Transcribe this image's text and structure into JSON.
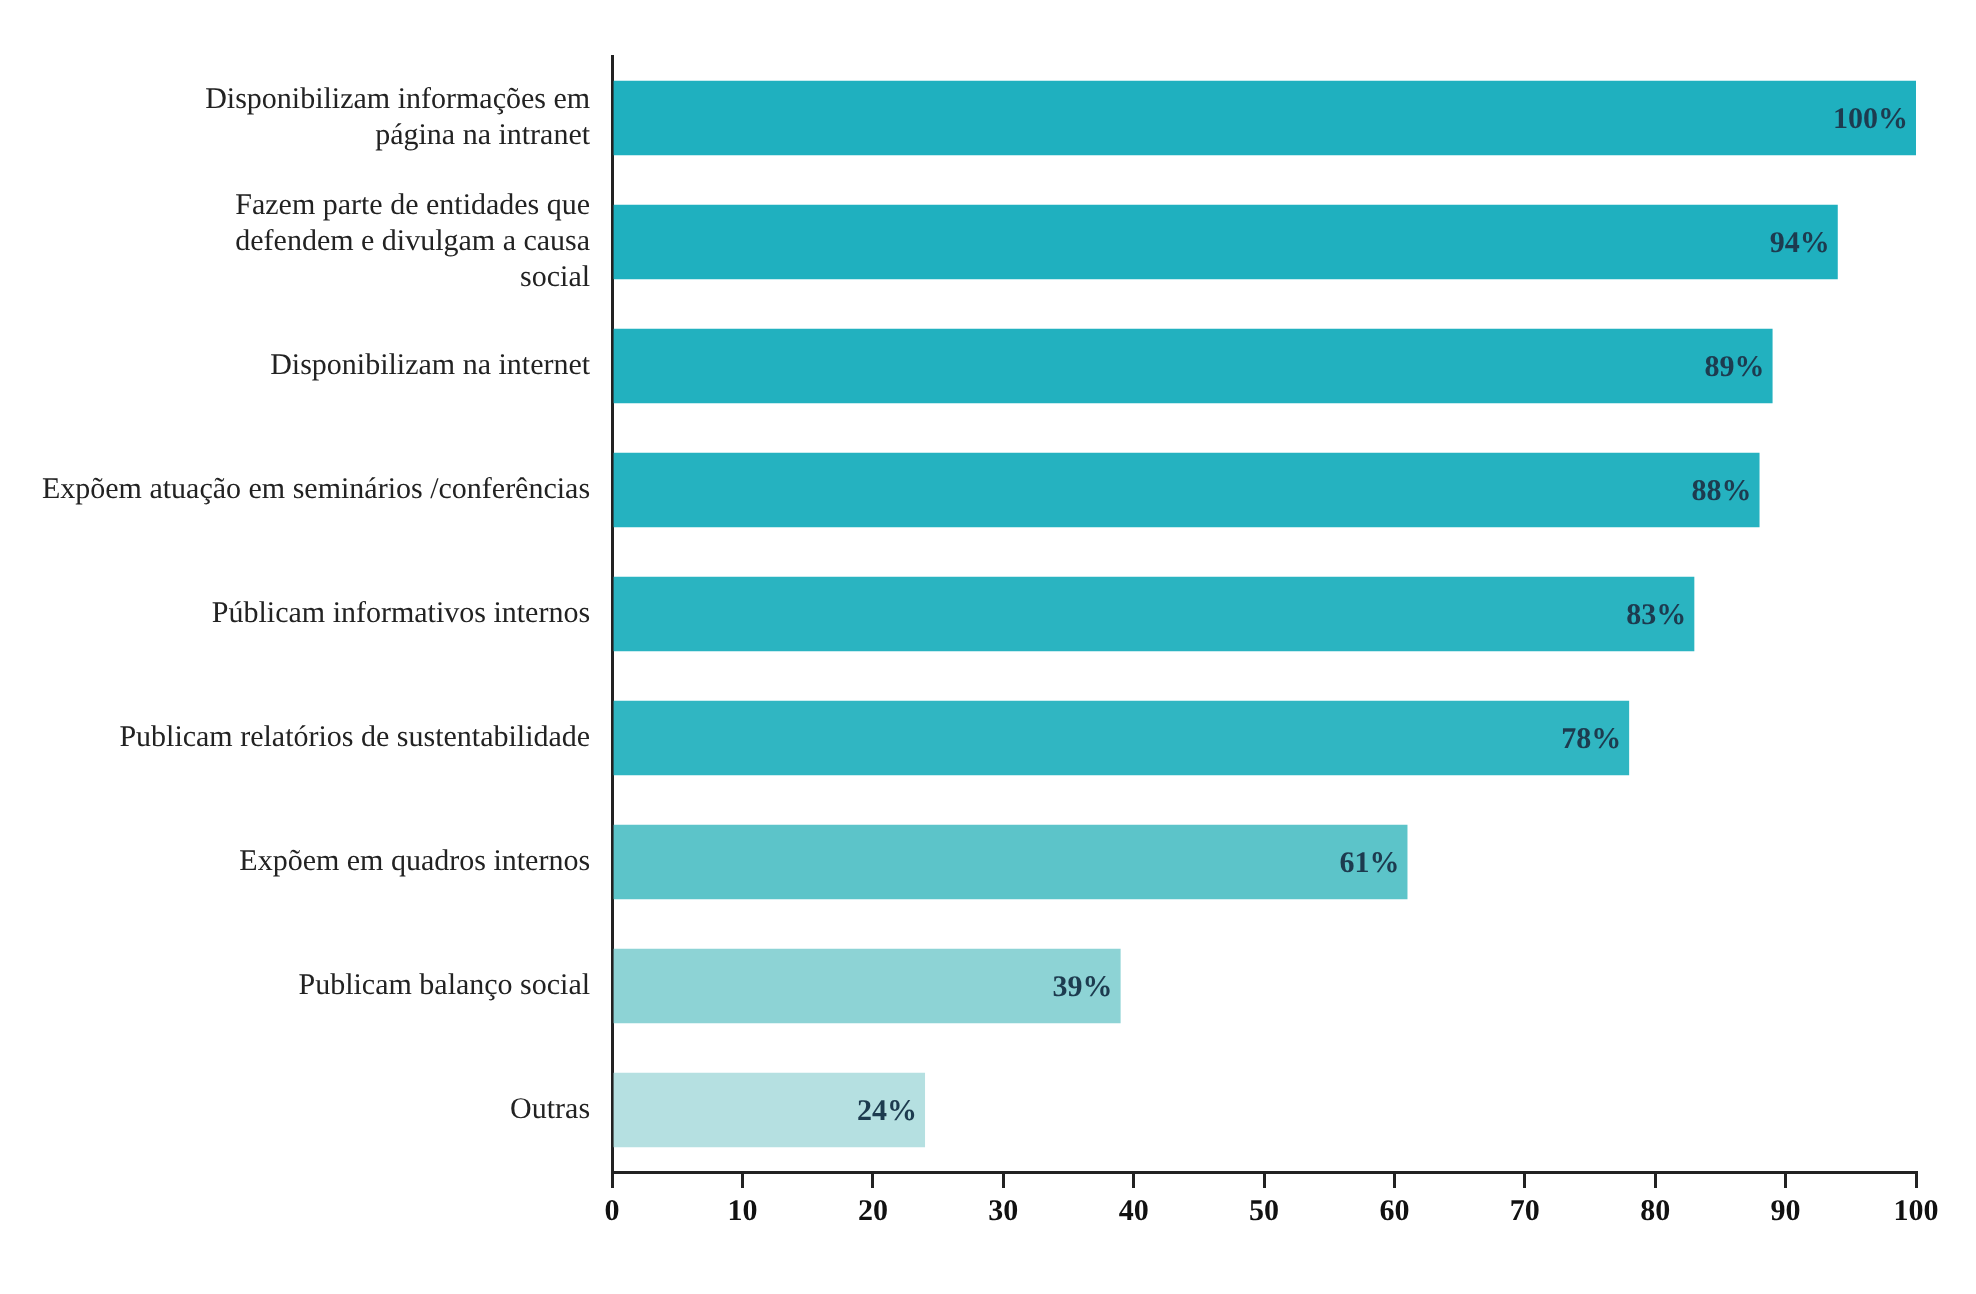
{
  "chart_data": {
    "type": "bar",
    "orientation": "horizontal",
    "categories": [
      "Disponibilizam informações em página na intranet",
      "Fazem parte de entidades que defendem e divulgam a causa social",
      "Disponibilizam na internet",
      "Expõem atuação em seminários /conferências",
      "Públicam informativos internos",
      "Publicam relatórios de sustentabilidade",
      "Expõem em quadros internos",
      "Publicam balanço social",
      "Outras"
    ],
    "values": [
      100,
      94,
      89,
      88,
      83,
      78,
      61,
      39,
      24
    ],
    "colors": [
      "#1fb0bf",
      "#1fb0bf",
      "#22b1bf",
      "#25b2c0",
      "#2ab4c1",
      "#30b6c2",
      "#5cc4c9",
      "#8dd3d5",
      "#b5e0e1"
    ],
    "value_labels": [
      "100%",
      "94%",
      "89%",
      "88%",
      "83%",
      "78%",
      "61%",
      "39%",
      "24%"
    ],
    "xlim": [
      0,
      100
    ],
    "xticks": [
      0,
      10,
      20,
      30,
      40,
      50,
      60,
      70,
      80,
      90,
      100
    ],
    "grid": false,
    "legend": false
  }
}
